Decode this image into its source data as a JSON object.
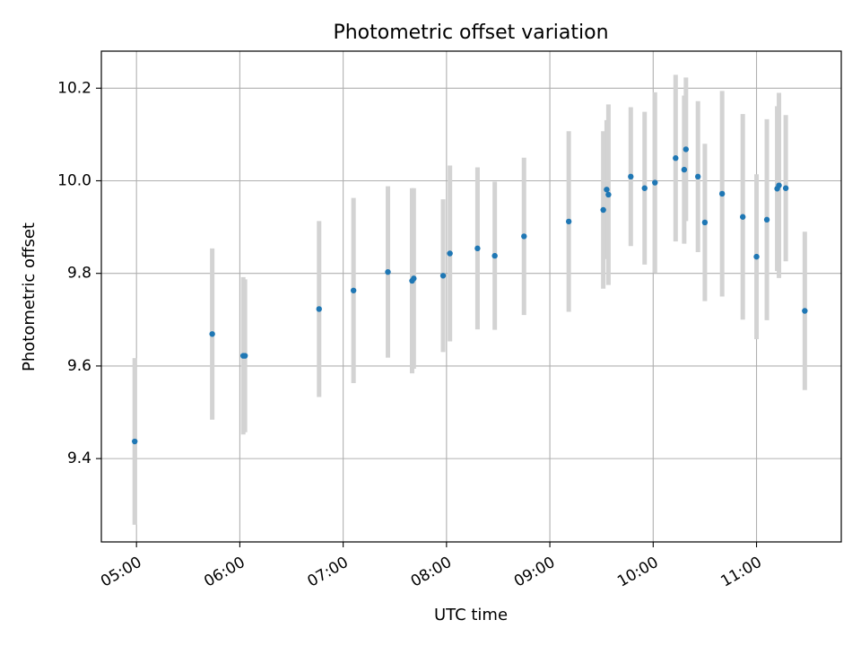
{
  "chart_data": {
    "type": "scatter",
    "title": "Photometric offset variation",
    "xlabel": "UTC time",
    "ylabel": "Photometric offset",
    "xlim_hours": [
      4.66,
      11.82
    ],
    "ylim": [
      9.22,
      10.28
    ],
    "grid": true,
    "x_ticks": [
      {
        "label": "05:00",
        "hour": 5
      },
      {
        "label": "06:00",
        "hour": 6
      },
      {
        "label": "07:00",
        "hour": 7
      },
      {
        "label": "08:00",
        "hour": 8
      },
      {
        "label": "09:00",
        "hour": 9
      },
      {
        "label": "10:00",
        "hour": 10
      },
      {
        "label": "11:00",
        "hour": 11
      }
    ],
    "y_ticks": [
      {
        "label": "9.4",
        "value": 9.4
      },
      {
        "label": "9.6",
        "value": 9.6
      },
      {
        "label": "9.8",
        "value": 9.8
      },
      {
        "label": "10.0",
        "value": 10.0
      },
      {
        "label": "10.2",
        "value": 10.2
      }
    ],
    "points": [
      {
        "t": 4.983,
        "y": 9.437,
        "err": 0.18
      },
      {
        "t": 5.733,
        "y": 9.669,
        "err": 0.185
      },
      {
        "t": 6.033,
        "y": 9.622,
        "err": 0.17
      },
      {
        "t": 6.05,
        "y": 9.622,
        "err": 0.165
      },
      {
        "t": 6.767,
        "y": 9.723,
        "err": 0.19
      },
      {
        "t": 7.1,
        "y": 9.763,
        "err": 0.2
      },
      {
        "t": 7.433,
        "y": 9.803,
        "err": 0.185
      },
      {
        "t": 7.667,
        "y": 9.784,
        "err": 0.2
      },
      {
        "t": 7.683,
        "y": 9.789,
        "err": 0.195
      },
      {
        "t": 7.967,
        "y": 9.795,
        "err": 0.165
      },
      {
        "t": 8.033,
        "y": 9.843,
        "err": 0.19
      },
      {
        "t": 8.3,
        "y": 9.854,
        "err": 0.175
      },
      {
        "t": 8.467,
        "y": 9.838,
        "err": 0.16
      },
      {
        "t": 8.75,
        "y": 9.88,
        "err": 0.17
      },
      {
        "t": 9.183,
        "y": 9.912,
        "err": 0.195
      },
      {
        "t": 9.517,
        "y": 9.937,
        "err": 0.17
      },
      {
        "t": 9.55,
        "y": 9.981,
        "err": 0.15
      },
      {
        "t": 9.567,
        "y": 9.97,
        "err": 0.195
      },
      {
        "t": 9.783,
        "y": 10.009,
        "err": 0.15
      },
      {
        "t": 9.917,
        "y": 9.984,
        "err": 0.165
      },
      {
        "t": 10.017,
        "y": 9.996,
        "err": 0.195
      },
      {
        "t": 10.217,
        "y": 10.049,
        "err": 0.18
      },
      {
        "t": 10.3,
        "y": 10.024,
        "err": 0.16
      },
      {
        "t": 10.317,
        "y": 10.068,
        "err": 0.155
      },
      {
        "t": 10.433,
        "y": 10.009,
        "err": 0.163
      },
      {
        "t": 10.5,
        "y": 9.91,
        "err": 0.17
      },
      {
        "t": 10.667,
        "y": 9.972,
        "err": 0.222
      },
      {
        "t": 10.867,
        "y": 9.922,
        "err": 0.222
      },
      {
        "t": 11.0,
        "y": 9.836,
        "err": 0.178
      },
      {
        "t": 11.1,
        "y": 9.916,
        "err": 0.217
      },
      {
        "t": 11.2,
        "y": 9.983,
        "err": 0.178
      },
      {
        "t": 11.217,
        "y": 9.99,
        "err": 0.2
      },
      {
        "t": 11.283,
        "y": 9.984,
        "err": 0.158
      },
      {
        "t": 11.467,
        "y": 9.719,
        "err": 0.171
      }
    ],
    "colors": {
      "marker": "#1f77b4",
      "errorbar": "#d3d3d3",
      "grid": "#b0b0b0",
      "axes": "#000000"
    }
  }
}
